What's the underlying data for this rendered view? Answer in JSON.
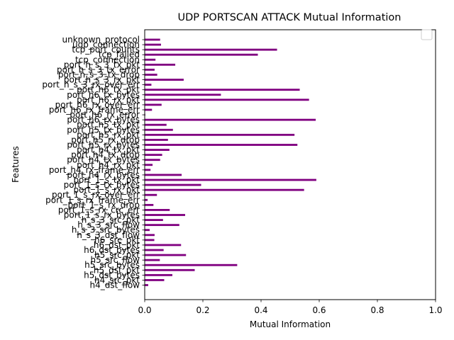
{
  "chart_data": {
    "type": "bar",
    "orientation": "horizontal",
    "title": "UDP PORTSCAN ATTACK Mutual Information",
    "xlabel": "Mutual Information",
    "ylabel": "Features",
    "xlim": [
      0,
      1.0
    ],
    "xticks": [
      "0.0",
      "0.2",
      "0.4",
      "0.6",
      "0.8",
      "1.0"
    ],
    "bar_color": "#800080",
    "legend": {
      "placement": "top-right",
      "entries": []
    },
    "grid": false,
    "categories": [
      "h4_dst_flow",
      "h4_src_pkt",
      "h5_dst_bytes",
      "h5_dst_pkt",
      "h5_src_bytes",
      "h5_src_flow",
      "h5_src_pkt",
      "h6_dst_bytes",
      "h6_dst_pkt",
      "h6_src_pkt",
      "h_s_3_dst_flow",
      "h_s_3_src_bytes",
      "h_s_3_src_flow",
      "h_s_3_src_pkt",
      "port_1_s_rx_bytes",
      "port_1_s_rx_crc_err",
      "port_1_s_rx_drop",
      "port_1_s_rx_frame_err",
      "port_1_s_rx_over_err",
      "port_1_s_rx_pkt",
      "port_1_s_tx_bytes",
      "port_1_s_tx_pkt",
      "port_h4_rx_bytes",
      "port_h4_rx_frame_err",
      "port_h4_rx_pkt",
      "port_h4_tx_bytes",
      "port_h4_tx_drop",
      "port_h4_tx_pkt",
      "port_h5_rx_bytes",
      "port_h5_rx_drop",
      "port_h5_rx_pkt",
      "port_h5_tx_bytes",
      "port_h5_tx_pkt",
      "port_h6_rx_bytes",
      "port_h6_rx_error",
      "port_h6_rx_frame_err",
      "port_h6_rx_over_err",
      "port_h6_rx_pkt",
      "port_h6_tx_bytes",
      "port_h6_tx_pkt",
      "port_h_s_3_rx_over_err",
      "port_h_s_3_rx_pkt",
      "port_h_s_3_tx_drop",
      "port_h_s_3_tx_error",
      "port_h_s_3_tx_pkt",
      "tcp_connection",
      "tcp_failed",
      "tcp_port_counts",
      "udp_connection",
      "unknown_protocol"
    ],
    "values": [
      0.012,
      0.067,
      0.095,
      0.172,
      0.318,
      0.052,
      0.142,
      0.065,
      0.125,
      0.033,
      0.034,
      0.017,
      0.119,
      0.063,
      0.139,
      0.086,
      0.03,
      0.01,
      0.042,
      0.548,
      0.194,
      0.59,
      0.127,
      0.02,
      0.027,
      0.053,
      0.06,
      0.085,
      0.525,
      0.08,
      0.515,
      0.097,
      0.075,
      0.588,
      0.002,
      0.025,
      0.058,
      0.565,
      0.262,
      0.533,
      0.023,
      0.134,
      0.043,
      0.034,
      0.105,
      0.037,
      0.389,
      0.455,
      0.056,
      0.053
    ]
  }
}
